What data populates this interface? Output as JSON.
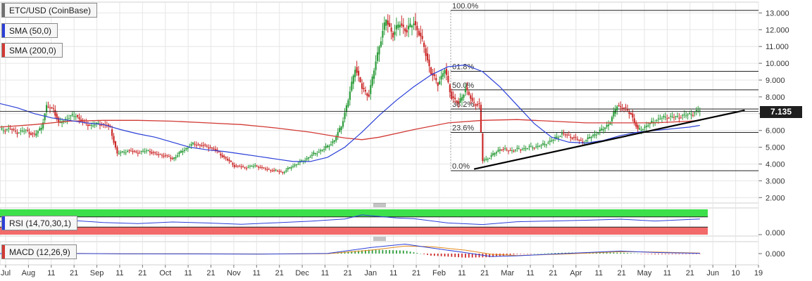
{
  "legends": {
    "main": {
      "label": "ETC/USD (CoinBase)",
      "color": "#6f6f6f"
    },
    "sma50": {
      "label": "SMA (50,0)",
      "color": "#2b3fd8"
    },
    "sma200": {
      "label": "SMA (200,0)",
      "color": "#d23a35"
    },
    "rsi": {
      "label": "RSI (14,70,30,1)",
      "color": "#2b3fd8"
    },
    "macd": {
      "label": "MACD (12,26,9)",
      "color": "#d23a35"
    }
  },
  "price_tag": "7.135",
  "colors": {
    "up": "#2e9d3c",
    "down": "#cc2b2b",
    "sma50": "#2b3fd8",
    "sma200": "#d23a35",
    "grid": "#e6e6e6",
    "fib": "#222222",
    "rsi_band_top": "#3ce04a",
    "rsi_band_bottom": "#f26a6a"
  },
  "chart_data": [
    {
      "type": "candlestick",
      "title": "ETC/USD (CoinBase)",
      "y_ticks": [
        "2.000",
        "3.000",
        "4.000",
        "5.000",
        "6.000",
        "7.000",
        "8.000",
        "9.000",
        "10.000",
        "11.000",
        "12.000",
        "13.000"
      ],
      "ylim": [
        1.6,
        13.4
      ],
      "x_ticks": [
        "Jul",
        "Aug",
        "11",
        "21",
        "Sep",
        "11",
        "21",
        "Oct",
        "11",
        "21",
        "Nov",
        "11",
        "21",
        "Dec",
        "11",
        "21",
        "Jan",
        "11",
        "21",
        "Feb",
        "11",
        "21",
        "Mar",
        "11",
        "21",
        "Apr",
        "11",
        "21",
        "May",
        "11",
        "21",
        "Jun",
        "10",
        "19"
      ],
      "fib_levels": [
        {
          "label": "100.0%",
          "value": 13.15
        },
        {
          "label": "61.8%",
          "value": 9.52
        },
        {
          "label": "50.0%",
          "value": 8.42
        },
        {
          "label": "38.2%",
          "value": 7.28
        },
        {
          "label": "23.6%",
          "value": 5.88
        },
        {
          "label": "0.0%",
          "value": 3.6
        }
      ],
      "last_price": 7.135,
      "series": [
        {
          "name": "ETC/USD (CoinBase)",
          "kind": "close",
          "values": [
            [
              0,
              6.0
            ],
            [
              5,
              6.1
            ],
            [
              10,
              5.9
            ],
            [
              15,
              6.0
            ],
            [
              20,
              5.7
            ],
            [
              24,
              6.2
            ],
            [
              27,
              7.4
            ],
            [
              31,
              7.3
            ],
            [
              34,
              6.4
            ],
            [
              40,
              6.8
            ],
            [
              44,
              6.9
            ],
            [
              48,
              6.5
            ],
            [
              52,
              6.3
            ],
            [
              58,
              6.4
            ],
            [
              62,
              6.3
            ],
            [
              64,
              6.1
            ],
            [
              68,
              4.6
            ],
            [
              74,
              4.8
            ],
            [
              80,
              4.7
            ],
            [
              86,
              4.8
            ],
            [
              90,
              4.6
            ],
            [
              96,
              4.5
            ],
            [
              100,
              4.3
            ],
            [
              106,
              4.8
            ],
            [
              112,
              5.2
            ],
            [
              118,
              5.1
            ],
            [
              124,
              4.9
            ],
            [
              130,
              4.4
            ],
            [
              136,
              3.9
            ],
            [
              142,
              3.8
            ],
            [
              148,
              3.9
            ],
            [
              154,
              3.7
            ],
            [
              160,
              3.6
            ],
            [
              164,
              3.5
            ],
            [
              170,
              3.9
            ],
            [
              176,
              4.2
            ],
            [
              182,
              4.6
            ],
            [
              188,
              4.9
            ],
            [
              194,
              5.4
            ],
            [
              198,
              6.3
            ],
            [
              202,
              7.8
            ],
            [
              206,
              9.8
            ],
            [
              210,
              8.5
            ],
            [
              214,
              8.1
            ],
            [
              220,
              11.1
            ],
            [
              224,
              12.6
            ],
            [
              228,
              11.7
            ],
            [
              232,
              12.4
            ],
            [
              236,
              11.9
            ],
            [
              240,
              12.5
            ],
            [
              246,
              11.0
            ],
            [
              250,
              9.4
            ],
            [
              254,
              8.8
            ],
            [
              258,
              9.6
            ],
            [
              262,
              8.0
            ],
            [
              266,
              7.6
            ],
            [
              270,
              8.5
            ],
            [
              274,
              7.7
            ],
            [
              278,
              7.5
            ],
            [
              280,
              4.2
            ],
            [
              284,
              4.4
            ],
            [
              290,
              4.9
            ],
            [
              296,
              4.8
            ],
            [
              302,
              4.9
            ],
            [
              308,
              5.0
            ],
            [
              314,
              5.1
            ],
            [
              320,
              5.4
            ],
            [
              326,
              5.8
            ],
            [
              332,
              5.6
            ],
            [
              338,
              5.3
            ],
            [
              344,
              5.7
            ],
            [
              350,
              6.1
            ],
            [
              354,
              6.5
            ],
            [
              358,
              7.5
            ],
            [
              362,
              7.3
            ],
            [
              366,
              7.0
            ],
            [
              370,
              6.0
            ],
            [
              374,
              6.2
            ],
            [
              380,
              6.6
            ],
            [
              386,
              6.8
            ],
            [
              392,
              6.8
            ],
            [
              398,
              6.9
            ],
            [
              404,
              7.1
            ],
            [
              406,
              7.2
            ]
          ]
        },
        {
          "name": "SMA (50,0)",
          "kind": "line",
          "values": [
            [
              0,
              7.6
            ],
            [
              10,
              7.35
            ],
            [
              20,
              7.0
            ],
            [
              30,
              6.75
            ],
            [
              40,
              6.6
            ],
            [
              50,
              6.45
            ],
            [
              60,
              6.35
            ],
            [
              70,
              6.05
            ],
            [
              80,
              5.8
            ],
            [
              90,
              5.6
            ],
            [
              100,
              5.3
            ],
            [
              110,
              5.0
            ],
            [
              120,
              4.85
            ],
            [
              130,
              4.75
            ],
            [
              140,
              4.6
            ],
            [
              150,
              4.45
            ],
            [
              160,
              4.3
            ],
            [
              170,
              4.15
            ],
            [
              180,
              4.15
            ],
            [
              190,
              4.4
            ],
            [
              200,
              5.0
            ],
            [
              210,
              5.9
            ],
            [
              220,
              6.9
            ],
            [
              230,
              7.8
            ],
            [
              240,
              8.6
            ],
            [
              250,
              9.3
            ],
            [
              260,
              9.8
            ],
            [
              270,
              9.9
            ],
            [
              280,
              9.5
            ],
            [
              290,
              8.6
            ],
            [
              300,
              7.5
            ],
            [
              310,
              6.4
            ],
            [
              320,
              5.6
            ],
            [
              330,
              5.3
            ],
            [
              340,
              5.25
            ],
            [
              350,
              5.4
            ],
            [
              360,
              5.7
            ],
            [
              370,
              5.9
            ],
            [
              380,
              6.0
            ],
            [
              390,
              6.1
            ],
            [
              400,
              6.2
            ],
            [
              406,
              6.3
            ]
          ]
        },
        {
          "name": "SMA (200,0)",
          "kind": "line",
          "values": [
            [
              0,
              6.2
            ],
            [
              20,
              6.35
            ],
            [
              40,
              6.55
            ],
            [
              60,
              6.6
            ],
            [
              80,
              6.6
            ],
            [
              100,
              6.55
            ],
            [
              120,
              6.45
            ],
            [
              140,
              6.35
            ],
            [
              160,
              6.15
            ],
            [
              180,
              5.9
            ],
            [
              200,
              5.55
            ],
            [
              210,
              5.45
            ],
            [
              220,
              5.6
            ],
            [
              240,
              6.05
            ],
            [
              260,
              6.45
            ],
            [
              280,
              6.6
            ],
            [
              300,
              6.65
            ],
            [
              320,
              6.55
            ],
            [
              340,
              6.45
            ],
            [
              360,
              6.45
            ],
            [
              380,
              6.45
            ],
            [
              400,
              6.55
            ],
            [
              406,
              6.6
            ]
          ]
        }
      ],
      "trendline": [
        [
          275,
          3.7
        ],
        [
          432,
          7.2
        ]
      ]
    },
    {
      "type": "line",
      "title": "RSI (14,70,30,1)",
      "y_ticks": [
        "0.000"
      ],
      "bands": {
        "upper": 70,
        "lower": 30
      },
      "series": [
        {
          "name": "RSI (14,70,30,1)",
          "values": [
            [
              0,
              52
            ],
            [
              20,
              49
            ],
            [
              40,
              57
            ],
            [
              60,
              48
            ],
            [
              80,
              44
            ],
            [
              100,
              50
            ],
            [
              120,
              46
            ],
            [
              140,
              41
            ],
            [
              160,
              47
            ],
            [
              180,
              53
            ],
            [
              200,
              62
            ],
            [
              210,
              78
            ],
            [
              220,
              72
            ],
            [
              230,
              66
            ],
            [
              240,
              63
            ],
            [
              260,
              46
            ],
            [
              280,
              40
            ],
            [
              300,
              51
            ],
            [
              320,
              54
            ],
            [
              340,
              57
            ],
            [
              360,
              61
            ],
            [
              380,
              54
            ],
            [
              400,
              60
            ],
            [
              406,
              62
            ]
          ]
        }
      ]
    },
    {
      "type": "line",
      "title": "MACD (12,26,9)",
      "y_ticks": [
        "0.000"
      ],
      "series": [
        {
          "name": "MACD (12,26,9)",
          "values": [
            [
              0,
              0.0
            ],
            [
              30,
              0.05
            ],
            [
              70,
              -0.03
            ],
            [
              110,
              -0.04
            ],
            [
              150,
              -0.08
            ],
            [
              190,
              0.02
            ],
            [
              215,
              0.95
            ],
            [
              235,
              1.5
            ],
            [
              250,
              0.9
            ],
            [
              270,
              0.15
            ],
            [
              285,
              -0.45
            ],
            [
              300,
              -0.35
            ],
            [
              330,
              0.05
            ],
            [
              360,
              0.4
            ],
            [
              380,
              0.18
            ],
            [
              406,
              0.05
            ]
          ]
        },
        {
          "name": "signal",
          "values": [
            [
              0,
              0.0
            ],
            [
              30,
              0.04
            ],
            [
              70,
              -0.02
            ],
            [
              110,
              -0.03
            ],
            [
              150,
              -0.06
            ],
            [
              190,
              -0.01
            ],
            [
              215,
              0.55
            ],
            [
              235,
              1.2
            ],
            [
              250,
              1.1
            ],
            [
              270,
              0.55
            ],
            [
              285,
              -0.1
            ],
            [
              300,
              -0.3
            ],
            [
              330,
              -0.05
            ],
            [
              360,
              0.3
            ],
            [
              380,
              0.25
            ],
            [
              406,
              0.08
            ]
          ]
        }
      ]
    }
  ]
}
